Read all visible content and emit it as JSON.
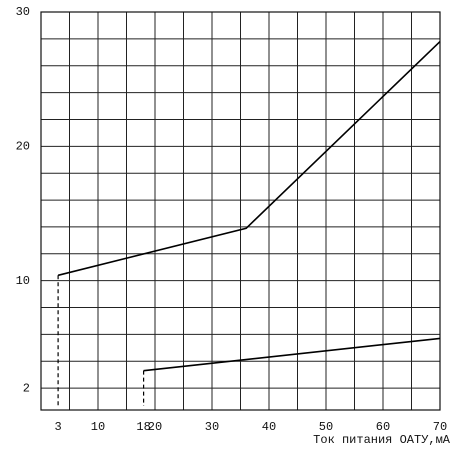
{
  "chart_data": {
    "type": "line",
    "x_label": "Ток питания ОАТУ,мА",
    "xlim": [
      0,
      70
    ],
    "ylim": [
      0,
      30
    ],
    "xticks": [
      3,
      10,
      18,
      20,
      30,
      40,
      50,
      60,
      70
    ],
    "yticks": [
      2,
      10,
      20,
      30
    ],
    "xgrid": [
      0,
      5,
      10,
      15,
      20,
      25,
      30,
      35,
      40,
      45,
      50,
      55,
      60,
      65,
      70
    ],
    "ygrid": [
      2,
      4,
      6,
      8,
      10,
      12,
      14,
      16,
      18,
      20,
      22,
      24,
      26,
      28,
      30
    ],
    "grid": true,
    "series": [
      {
        "color": "#000000",
        "x": [
          3,
          36,
          70
        ],
        "values": [
          10.4,
          13.9,
          27.8
        ]
      },
      {
        "color": "#000000",
        "x": [
          18,
          70
        ],
        "values": [
          3.3,
          5.7
        ]
      }
    ]
  }
}
